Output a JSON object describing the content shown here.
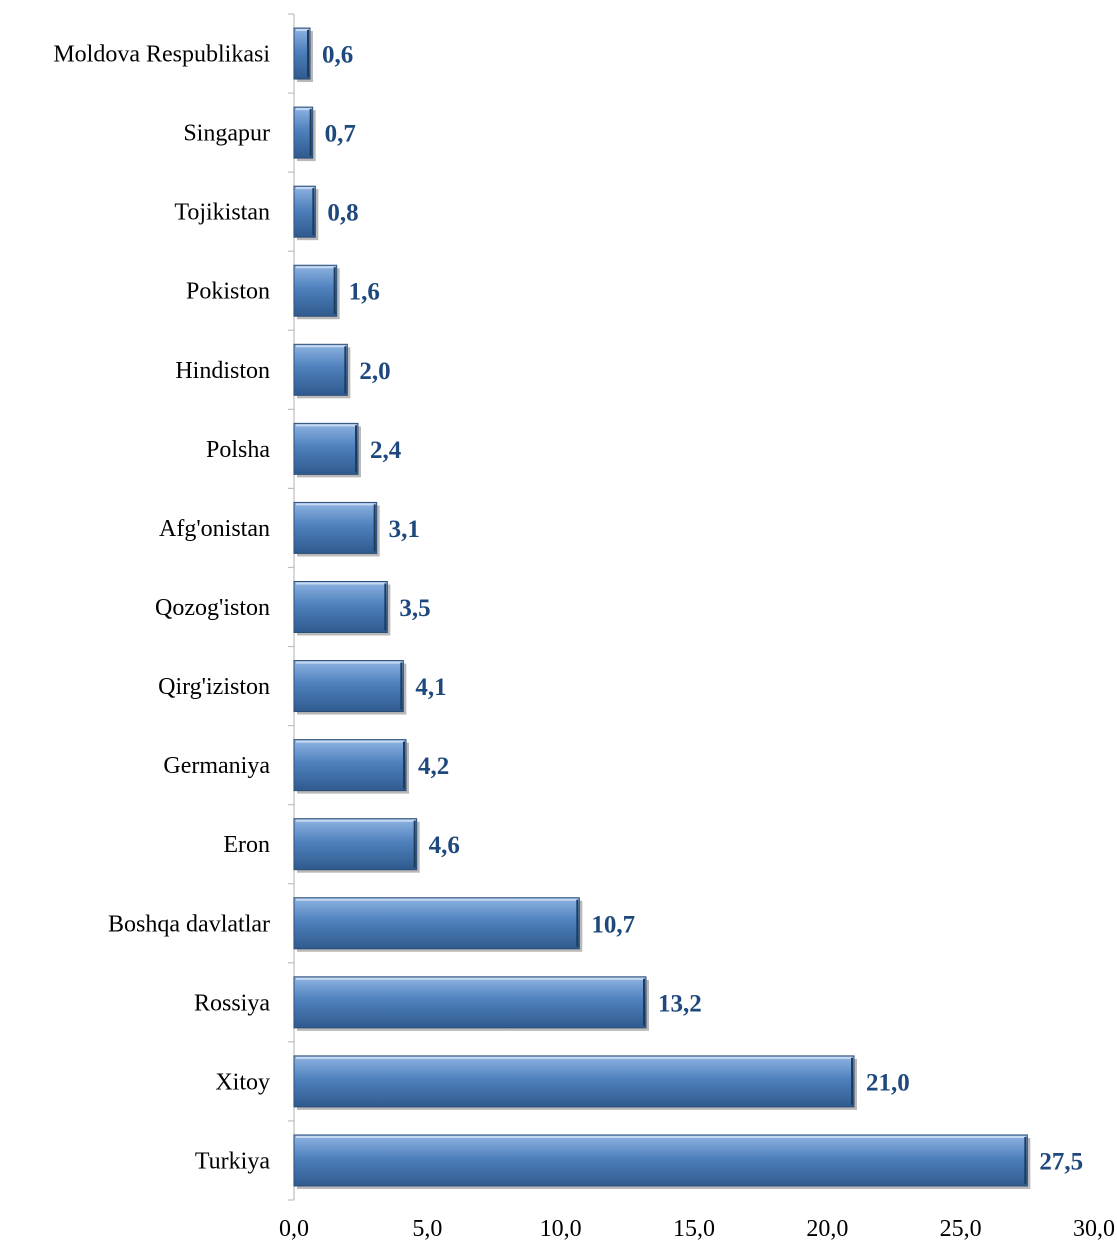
{
  "chart_data": {
    "type": "bar",
    "orientation": "horizontal",
    "categories": [
      "Moldova  Respublikasi",
      "Singapur",
      "Tojikistan",
      "Pokiston",
      "Hindiston",
      "Polsha",
      "Afg'onistan",
      "Qozog'iston",
      "Qirg'iziston",
      "Germaniya",
      "Eron",
      "Boshqa davlatlar",
      "Rossiya",
      "Xitoy",
      "Turkiya"
    ],
    "values": [
      0.6,
      0.7,
      0.8,
      1.6,
      2.0,
      2.4,
      3.1,
      3.5,
      4.1,
      4.2,
      4.6,
      10.7,
      13.2,
      21.0,
      27.5
    ],
    "value_labels": [
      "0,6",
      "0,7",
      "0,8",
      "1,6",
      "2,0",
      "2,4",
      "3,1",
      "3,5",
      "4,1",
      "4,2",
      "4,6",
      "10,7",
      "13,2",
      "21,0",
      "27,5"
    ],
    "xlim": [
      0,
      30
    ],
    "x_ticks": [
      "0,0",
      "5,0",
      "10,0",
      "15,0",
      "20,0",
      "25,0",
      "30,0"
    ],
    "grid": false,
    "bar_color": "#4f81bd",
    "label_color": "#1f497d",
    "title": "",
    "xlabel": "",
    "ylabel": ""
  }
}
